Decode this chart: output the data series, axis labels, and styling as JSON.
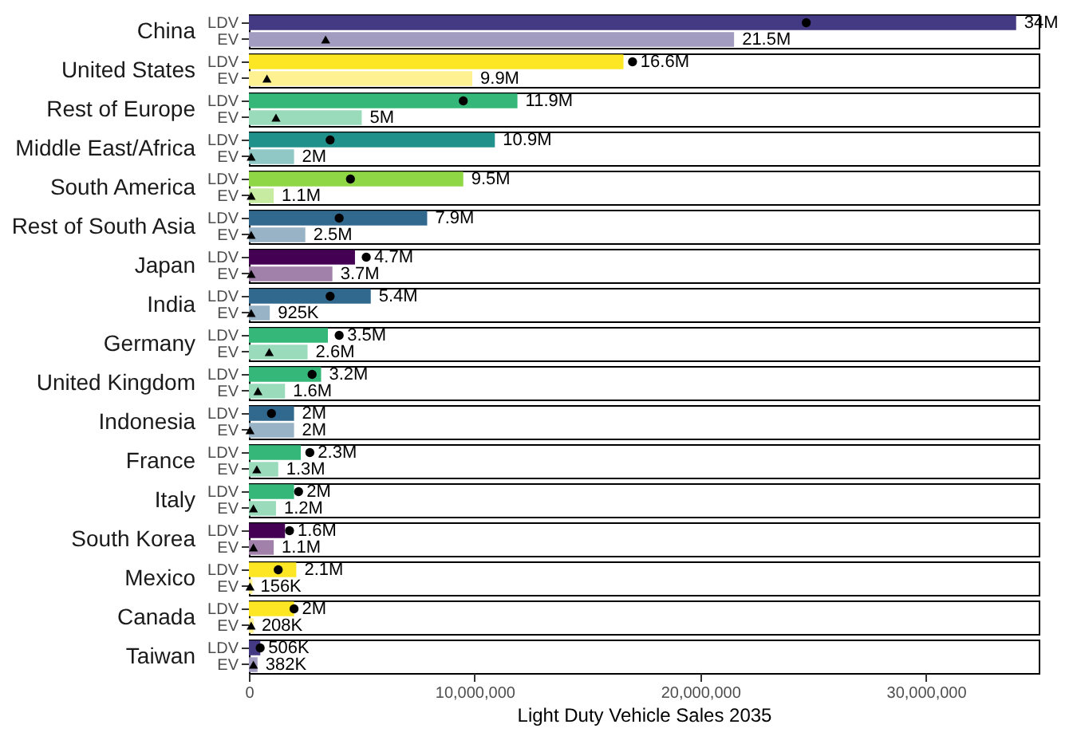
{
  "chart_data": [
    {
      "type": "bar",
      "orientation": "horizontal",
      "title": "China",
      "categories": [
        "LDV",
        "EV"
      ],
      "xlim": [
        0,
        35000000
      ],
      "tick_labels": "y",
      "series": [
        {
          "colors": [
            "#443983",
            "#a29cc1"
          ],
          "values": [
            34000000,
            21500000
          ],
          "value_labels": [
            "34M",
            "21.5M"
          ]
        },
        {
          "type": "scatter",
          "marker": "circle",
          "color": "#000000",
          "values": [
            24700000,
            null
          ]
        },
        {
          "type": "scatter",
          "marker": "triangle",
          "color": "#000000",
          "values": [
            null,
            3400000
          ]
        }
      ]
    },
    {
      "type": "bar",
      "orientation": "horizontal",
      "title": "United States",
      "categories": [
        "LDV",
        "EV"
      ],
      "xlim": [
        0,
        35000000
      ],
      "tick_labels": "y",
      "series": [
        {
          "colors": [
            "#fde725",
            "#fef192"
          ],
          "values": [
            16600000,
            9900000
          ],
          "value_labels": [
            "16.6M",
            "9.9M"
          ]
        },
        {
          "type": "scatter",
          "marker": "circle",
          "color": "#000000",
          "values": [
            17000000,
            null
          ]
        },
        {
          "type": "scatter",
          "marker": "triangle",
          "color": "#000000",
          "values": [
            null,
            800000
          ]
        }
      ]
    },
    {
      "type": "bar",
      "orientation": "horizontal",
      "title": "Rest of Europe",
      "categories": [
        "LDV",
        "EV"
      ],
      "xlim": [
        0,
        35000000
      ],
      "tick_labels": "y",
      "series": [
        {
          "colors": [
            "#35b779",
            "#9adbbc"
          ],
          "values": [
            11900000,
            5000000
          ],
          "value_labels": [
            "11.9M",
            "5M"
          ]
        },
        {
          "type": "scatter",
          "marker": "circle",
          "color": "#000000",
          "values": [
            9500000,
            null
          ]
        },
        {
          "type": "scatter",
          "marker": "triangle",
          "color": "#000000",
          "values": [
            null,
            1200000
          ]
        }
      ]
    },
    {
      "type": "bar",
      "orientation": "horizontal",
      "title": "Middle East/Africa",
      "categories": [
        "LDV",
        "EV"
      ],
      "xlim": [
        0,
        35000000
      ],
      "tick_labels": "y",
      "series": [
        {
          "colors": [
            "#21918c",
            "#90c8c5"
          ],
          "values": [
            10900000,
            2000000
          ],
          "value_labels": [
            "10.9M",
            "2M"
          ]
        },
        {
          "type": "scatter",
          "marker": "circle",
          "color": "#000000",
          "values": [
            3600000,
            null
          ]
        },
        {
          "type": "scatter",
          "marker": "triangle",
          "color": "#000000",
          "values": [
            null,
            100000
          ]
        }
      ]
    },
    {
      "type": "bar",
      "orientation": "horizontal",
      "title": "South America",
      "categories": [
        "LDV",
        "EV"
      ],
      "xlim": [
        0,
        35000000
      ],
      "tick_labels": "y",
      "series": [
        {
          "colors": [
            "#8fd744",
            "#c7eba1"
          ],
          "values": [
            9500000,
            1100000
          ],
          "value_labels": [
            "9.5M",
            "1.1M"
          ]
        },
        {
          "type": "scatter",
          "marker": "circle",
          "color": "#000000",
          "values": [
            4500000,
            null
          ]
        },
        {
          "type": "scatter",
          "marker": "triangle",
          "color": "#000000",
          "values": [
            null,
            100000
          ]
        }
      ]
    },
    {
      "type": "bar",
      "orientation": "horizontal",
      "title": "Rest of South Asia",
      "categories": [
        "LDV",
        "EV"
      ],
      "xlim": [
        0,
        35000000
      ],
      "tick_labels": "y",
      "series": [
        {
          "colors": [
            "#31688e",
            "#98b3c6"
          ],
          "values": [
            7900000,
            2500000
          ],
          "value_labels": [
            "7.9M",
            "2.5M"
          ]
        },
        {
          "type": "scatter",
          "marker": "circle",
          "color": "#000000",
          "values": [
            4000000,
            null
          ]
        },
        {
          "type": "scatter",
          "marker": "triangle",
          "color": "#000000",
          "values": [
            null,
            100000
          ]
        }
      ]
    },
    {
      "type": "bar",
      "orientation": "horizontal",
      "title": "Japan",
      "categories": [
        "LDV",
        "EV"
      ],
      "xlim": [
        0,
        35000000
      ],
      "tick_labels": "y",
      "series": [
        {
          "colors": [
            "#440154",
            "#a180a9"
          ],
          "values": [
            4700000,
            3700000
          ],
          "value_labels": [
            "4.7M",
            "3.7M"
          ]
        },
        {
          "type": "scatter",
          "marker": "circle",
          "color": "#000000",
          "values": [
            5200000,
            null
          ]
        },
        {
          "type": "scatter",
          "marker": "triangle",
          "color": "#000000",
          "values": [
            null,
            100000
          ]
        }
      ]
    },
    {
      "type": "bar",
      "orientation": "horizontal",
      "title": "India",
      "categories": [
        "LDV",
        "EV"
      ],
      "xlim": [
        0,
        35000000
      ],
      "tick_labels": "y",
      "series": [
        {
          "colors": [
            "#31688e",
            "#98b3c6"
          ],
          "values": [
            5400000,
            925000
          ],
          "value_labels": [
            "5.4M",
            "925K"
          ]
        },
        {
          "type": "scatter",
          "marker": "circle",
          "color": "#000000",
          "values": [
            3600000,
            null
          ]
        },
        {
          "type": "scatter",
          "marker": "triangle",
          "color": "#000000",
          "values": [
            null,
            100000
          ]
        }
      ]
    },
    {
      "type": "bar",
      "orientation": "horizontal",
      "title": "Germany",
      "categories": [
        "LDV",
        "EV"
      ],
      "xlim": [
        0,
        35000000
      ],
      "tick_labels": "y",
      "series": [
        {
          "colors": [
            "#35b779",
            "#9adbbc"
          ],
          "values": [
            3500000,
            2600000
          ],
          "value_labels": [
            "3.5M",
            "2.6M"
          ]
        },
        {
          "type": "scatter",
          "marker": "circle",
          "color": "#000000",
          "values": [
            4000000,
            null
          ]
        },
        {
          "type": "scatter",
          "marker": "triangle",
          "color": "#000000",
          "values": [
            null,
            900000
          ]
        }
      ]
    },
    {
      "type": "bar",
      "orientation": "horizontal",
      "title": "United Kingdom",
      "categories": [
        "LDV",
        "EV"
      ],
      "xlim": [
        0,
        35000000
      ],
      "tick_labels": "y",
      "series": [
        {
          "colors": [
            "#35b779",
            "#9adbbc"
          ],
          "values": [
            3200000,
            1600000
          ],
          "value_labels": [
            "3.2M",
            "1.6M"
          ]
        },
        {
          "type": "scatter",
          "marker": "circle",
          "color": "#000000",
          "values": [
            2800000,
            null
          ]
        },
        {
          "type": "scatter",
          "marker": "triangle",
          "color": "#000000",
          "values": [
            null,
            400000
          ]
        }
      ]
    },
    {
      "type": "bar",
      "orientation": "horizontal",
      "title": "Indonesia",
      "categories": [
        "LDV",
        "EV"
      ],
      "xlim": [
        0,
        35000000
      ],
      "tick_labels": "y",
      "series": [
        {
          "colors": [
            "#31688e",
            "#98b3c6"
          ],
          "values": [
            2000000,
            2000000
          ],
          "value_labels": [
            "2M",
            "2M"
          ]
        },
        {
          "type": "scatter",
          "marker": "circle",
          "color": "#000000",
          "values": [
            1000000,
            null
          ]
        },
        {
          "type": "scatter",
          "marker": "triangle",
          "color": "#000000",
          "values": [
            null,
            50000
          ]
        }
      ]
    },
    {
      "type": "bar",
      "orientation": "horizontal",
      "title": "France",
      "categories": [
        "LDV",
        "EV"
      ],
      "xlim": [
        0,
        35000000
      ],
      "tick_labels": "y",
      "series": [
        {
          "colors": [
            "#35b779",
            "#9adbbc"
          ],
          "values": [
            2300000,
            1300000
          ],
          "value_labels": [
            "2.3M",
            "1.3M"
          ]
        },
        {
          "type": "scatter",
          "marker": "circle",
          "color": "#000000",
          "values": [
            2700000,
            null
          ]
        },
        {
          "type": "scatter",
          "marker": "triangle",
          "color": "#000000",
          "values": [
            null,
            350000
          ]
        }
      ]
    },
    {
      "type": "bar",
      "orientation": "horizontal",
      "title": "Italy",
      "categories": [
        "LDV",
        "EV"
      ],
      "xlim": [
        0,
        35000000
      ],
      "tick_labels": "y",
      "series": [
        {
          "colors": [
            "#35b779",
            "#9adbbc"
          ],
          "values": [
            2000000,
            1200000
          ],
          "value_labels": [
            "2M",
            "1.2M"
          ]
        },
        {
          "type": "scatter",
          "marker": "circle",
          "color": "#000000",
          "values": [
            2200000,
            null
          ]
        },
        {
          "type": "scatter",
          "marker": "triangle",
          "color": "#000000",
          "values": [
            null,
            200000
          ]
        }
      ]
    },
    {
      "type": "bar",
      "orientation": "horizontal",
      "title": "South Korea",
      "categories": [
        "LDV",
        "EV"
      ],
      "xlim": [
        0,
        35000000
      ],
      "tick_labels": "y",
      "series": [
        {
          "colors": [
            "#440154",
            "#a180a9"
          ],
          "values": [
            1600000,
            1100000
          ],
          "value_labels": [
            "1.6M",
            "1.1M"
          ]
        },
        {
          "type": "scatter",
          "marker": "circle",
          "color": "#000000",
          "values": [
            1800000,
            null
          ]
        },
        {
          "type": "scatter",
          "marker": "triangle",
          "color": "#000000",
          "values": [
            null,
            200000
          ]
        }
      ]
    },
    {
      "type": "bar",
      "orientation": "horizontal",
      "title": "Mexico",
      "categories": [
        "LDV",
        "EV"
      ],
      "xlim": [
        0,
        35000000
      ],
      "tick_labels": "y",
      "series": [
        {
          "colors": [
            "#fde725",
            "#fef192"
          ],
          "values": [
            2100000,
            156000
          ],
          "value_labels": [
            "2.1M",
            "156K"
          ]
        },
        {
          "type": "scatter",
          "marker": "circle",
          "color": "#000000",
          "values": [
            1300000,
            null
          ]
        },
        {
          "type": "scatter",
          "marker": "triangle",
          "color": "#000000",
          "values": [
            null,
            50000
          ]
        }
      ]
    },
    {
      "type": "bar",
      "orientation": "horizontal",
      "title": "Canada",
      "categories": [
        "LDV",
        "EV"
      ],
      "xlim": [
        0,
        35000000
      ],
      "tick_labels": "y",
      "series": [
        {
          "colors": [
            "#fde725",
            "#fef192"
          ],
          "values": [
            2000000,
            208000
          ],
          "value_labels": [
            "2M",
            "208K"
          ]
        },
        {
          "type": "scatter",
          "marker": "circle",
          "color": "#000000",
          "values": [
            2000000,
            null
          ]
        },
        {
          "type": "scatter",
          "marker": "triangle",
          "color": "#000000",
          "values": [
            null,
            100000
          ]
        }
      ]
    },
    {
      "type": "bar",
      "orientation": "horizontal",
      "title": "Taiwan",
      "categories": [
        "LDV",
        "EV"
      ],
      "xlim": [
        0,
        35000000
      ],
      "xticks": [
        0,
        {
          "value": 10000000,
          "label": "10,000,000"
        },
        {
          "value": 20000000,
          "label": "20,000,000"
        },
        {
          "value": 30000000,
          "label": "30,000,000"
        }
      ],
      "xlabel": "Light Duty Vehicle Sales 2035",
      "series": [
        {
          "colors": [
            "#443983",
            "#a29cc1"
          ],
          "values": [
            506000,
            382000
          ],
          "value_labels": [
            "506K",
            "382K"
          ]
        },
        {
          "type": "scatter",
          "marker": "circle",
          "color": "#000000",
          "values": [
            500000,
            null
          ]
        },
        {
          "type": "scatter",
          "marker": "triangle",
          "color": "#000000",
          "values": [
            null,
            200000
          ]
        }
      ]
    }
  ]
}
